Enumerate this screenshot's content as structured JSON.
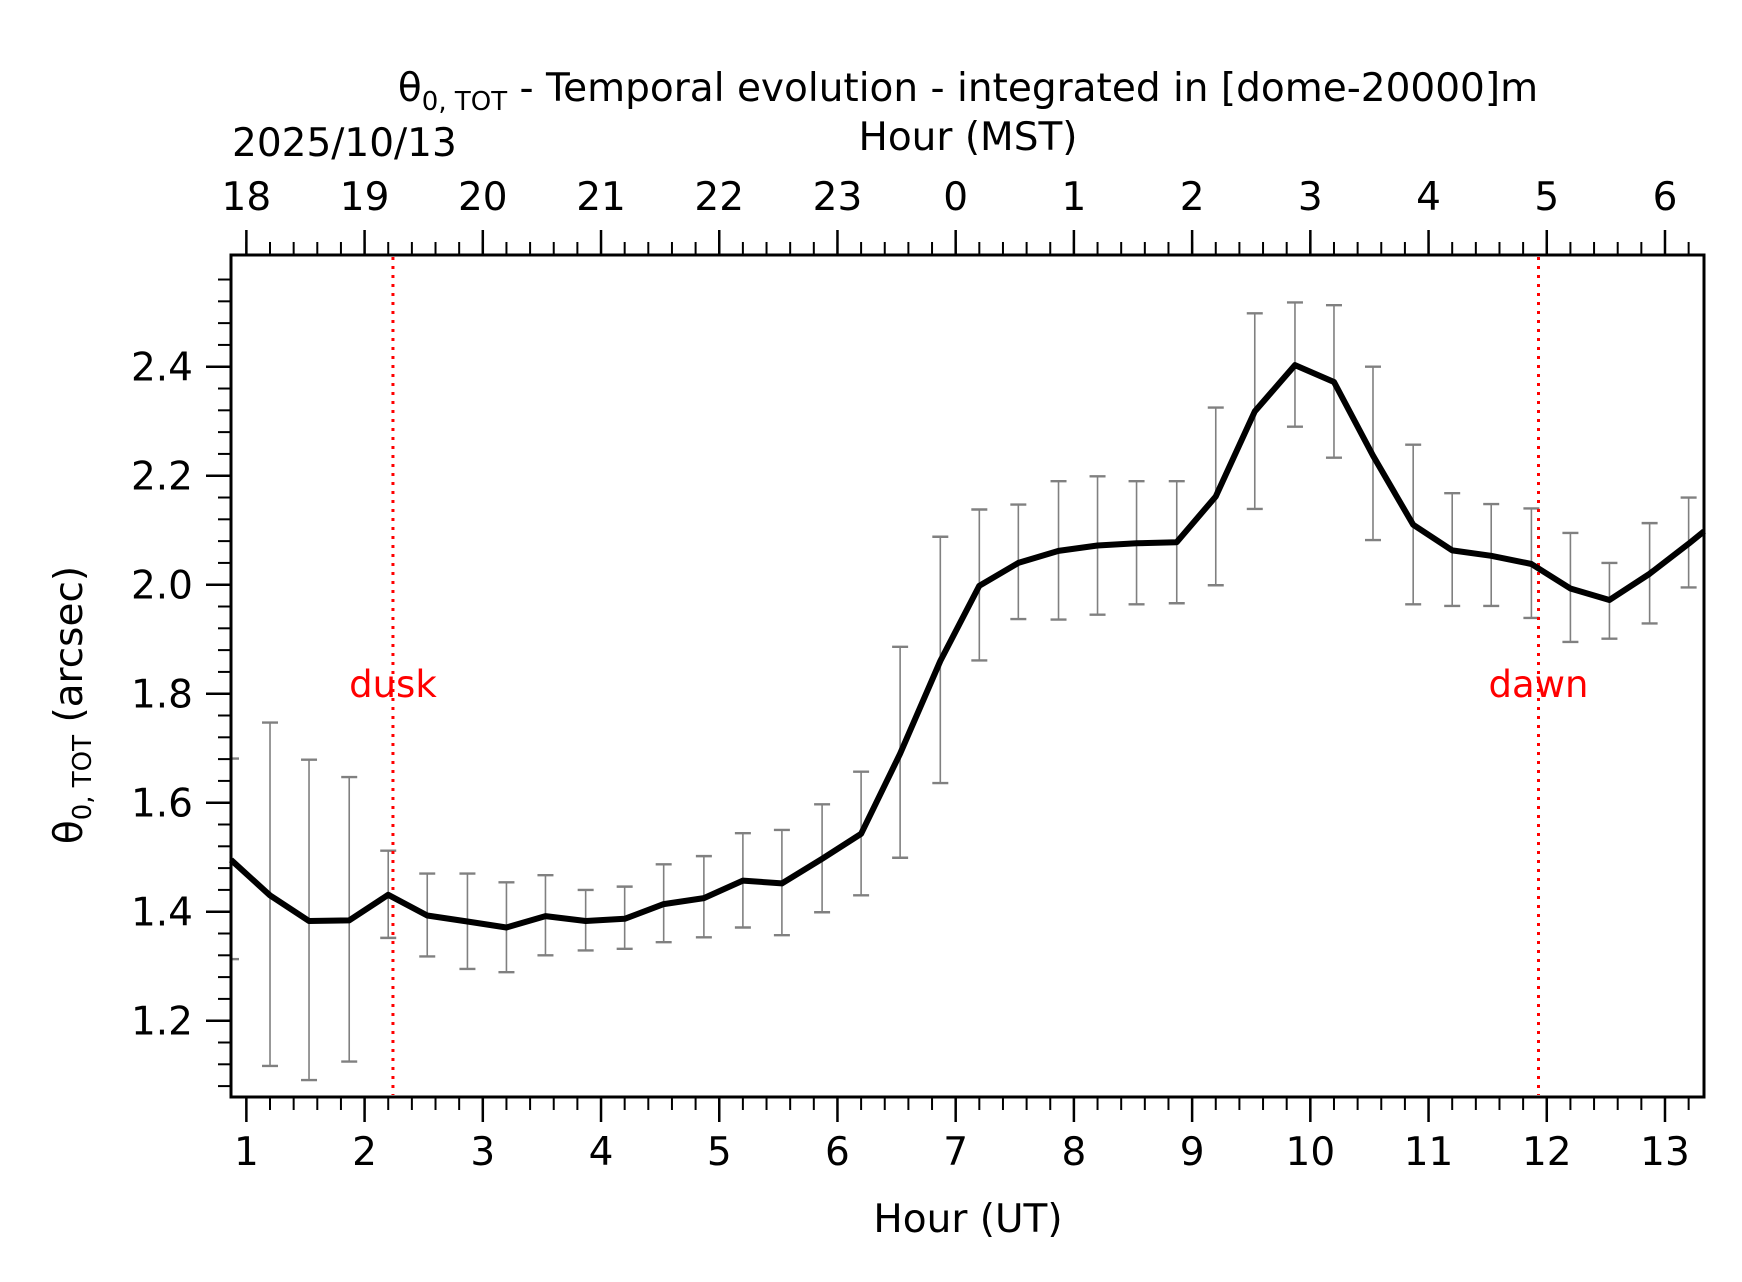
{
  "chart_data": {
    "type": "line",
    "title_prefix": "θ",
    "title_sub": "0, TOT",
    "title_suffix": " - Temporal evolution - integrated in [dome-20000]m",
    "date_label": "2025/10/13",
    "xlabel": "Hour (UT)",
    "x2label": "Hour (MST)",
    "ylabel_prefix": "θ",
    "ylabel_sub": "0, TOT",
    "ylabel_suffix": " (arcsec)",
    "xlim": [
      0.87,
      13.33
    ],
    "ylim": [
      1.06,
      2.605
    ],
    "x_ticks": [
      1,
      2,
      3,
      4,
      5,
      6,
      7,
      8,
      9,
      10,
      11,
      12,
      13
    ],
    "x_tick_labels": [
      "1",
      "2",
      "3",
      "4",
      "5",
      "6",
      "7",
      "8",
      "9",
      "10",
      "11",
      "12",
      "13"
    ],
    "x2_ticks": [
      1,
      2,
      3,
      4,
      5,
      6,
      7,
      8,
      9,
      10,
      11,
      12,
      13
    ],
    "x2_tick_labels": [
      "18",
      "19",
      "20",
      "21",
      "22",
      "23",
      "0",
      "1",
      "2",
      "3",
      "4",
      "5",
      "6"
    ],
    "y_ticks": [
      1.2,
      1.4,
      1.6,
      1.8,
      2.0,
      2.2,
      2.4
    ],
    "y_tick_labels": [
      "1.2",
      "1.4",
      "1.6",
      "1.8",
      "2.0",
      "2.2",
      "2.4"
    ],
    "series": [
      {
        "name": "theta0_tot",
        "color": "#000000",
        "x": [
          0.87,
          1.2,
          1.53,
          1.87,
          2.2,
          2.53,
          2.87,
          3.2,
          3.53,
          3.87,
          4.2,
          4.53,
          4.87,
          5.2,
          5.53,
          5.87,
          6.2,
          6.53,
          6.87,
          7.2,
          7.53,
          7.87,
          8.2,
          8.53,
          8.87,
          9.2,
          9.53,
          9.87,
          10.2,
          10.53,
          10.87,
          11.2,
          11.53,
          11.87,
          12.2,
          12.53,
          12.87,
          13.2,
          13.33
        ],
        "y": [
          1.495,
          1.43,
          1.383,
          1.384,
          1.431,
          1.393,
          1.382,
          1.371,
          1.392,
          1.383,
          1.387,
          1.414,
          1.425,
          1.457,
          1.452,
          1.497,
          1.543,
          1.69,
          1.86,
          1.998,
          2.04,
          2.062,
          2.072,
          2.076,
          2.078,
          2.162,
          2.318,
          2.403,
          2.372,
          2.237,
          2.11,
          2.063,
          2.053,
          2.038,
          1.993,
          1.972,
          2.02,
          2.075,
          2.098
        ],
        "err_x": [
          0.87,
          1.2,
          1.53,
          1.87,
          2.2,
          2.53,
          2.87,
          3.2,
          3.53,
          3.87,
          4.2,
          4.53,
          4.87,
          5.2,
          5.53,
          5.87,
          6.2,
          6.53,
          6.87,
          7.2,
          7.53,
          7.87,
          8.2,
          8.53,
          8.87,
          9.2,
          9.53,
          9.87,
          10.2,
          10.53,
          10.87,
          11.2,
          11.53,
          11.87,
          12.2,
          12.53,
          12.87,
          13.2
        ],
        "err_low": [
          1.313,
          1.117,
          1.091,
          1.125,
          1.352,
          1.318,
          1.295,
          1.289,
          1.32,
          1.329,
          1.332,
          1.344,
          1.353,
          1.371,
          1.357,
          1.399,
          1.43,
          1.499,
          1.636,
          1.861,
          1.937,
          1.936,
          1.945,
          1.964,
          1.966,
          1.999,
          2.139,
          2.29,
          2.233,
          2.082,
          1.964,
          1.961,
          1.961,
          1.939,
          1.895,
          1.901,
          1.929,
          1.995
        ],
        "err_high": [
          1.681,
          1.747,
          1.679,
          1.647,
          1.512,
          1.47,
          1.47,
          1.454,
          1.467,
          1.44,
          1.446,
          1.487,
          1.502,
          1.544,
          1.55,
          1.597,
          1.657,
          1.886,
          2.088,
          2.138,
          2.147,
          2.19,
          2.199,
          2.19,
          2.19,
          2.325,
          2.498,
          2.518,
          2.513,
          2.4,
          2.257,
          2.168,
          2.148,
          2.14,
          2.095,
          2.04,
          2.113,
          2.16
        ]
      }
    ],
    "markers": [
      {
        "label": "dusk",
        "x": 2.24,
        "color": "#ff0000",
        "label_y": 1.82
      },
      {
        "label": "dawn",
        "x": 11.93,
        "color": "#ff0000",
        "label_y": 1.82
      }
    ],
    "error_color": "#808080",
    "grid": false
  }
}
